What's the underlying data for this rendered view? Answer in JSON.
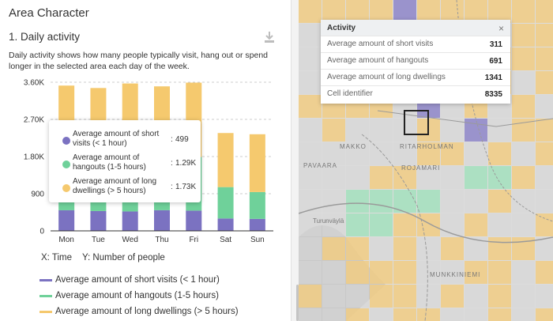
{
  "panel": {
    "title": "Area Character",
    "section_title": "1. Daily activity",
    "description": "Daily activity shows how many people typically visit, hang out or spend longer in the selected area each day of the week."
  },
  "colors": {
    "short": "#7b72c1",
    "hangout": "#6fd19a",
    "long": "#f5c96e"
  },
  "chart_data": {
    "type": "bar",
    "stacked": true,
    "categories": [
      "Mon",
      "Tue",
      "Wed",
      "Thu",
      "Fri",
      "Sat",
      "Sun"
    ],
    "series": [
      {
        "name": "Average amount of short visits (< 1 hour)",
        "values": [
          499,
          480,
          470,
          500,
          490,
          300,
          290
        ]
      },
      {
        "name": "Average amount of hangouts (1-5 hours)",
        "values": [
          1290,
          1280,
          1300,
          1300,
          1300,
          760,
          650
        ]
      },
      {
        "name": "Average amount of long dwellings (> 5 hours)",
        "values": [
          1730,
          1700,
          1800,
          1700,
          1800,
          1310,
          1400
        ]
      }
    ],
    "yticks": [
      "0",
      "900",
      "1.80K",
      "2.70K",
      "3.60K"
    ],
    "ylim": [
      0,
      3600
    ],
    "xlabel": "Time",
    "ylabel": "Number of people"
  },
  "tooltip": {
    "rows": [
      {
        "label": "Average amount of short visits (< 1 hour)",
        "value": "499"
      },
      {
        "label": "Average amount of hangouts (1-5 hours)",
        "value": "1.29K"
      },
      {
        "label": "Average amount of long dwellings (> 5 hours)",
        "value": "1.73K"
      }
    ]
  },
  "axis_caption": {
    "x": "X: Time",
    "y": "Y: Number of people"
  },
  "legend": [
    "Average amount of short visits (< 1 hour)",
    "Average amount of hangouts (1-5 hours)",
    "Average amount of long dwellings (> 5 hours)"
  ],
  "map": {
    "labels": [
      "MAKKO",
      "RITARHOLMAN",
      "PAVAARA",
      "ROJAMARI",
      "Turunväylä",
      "MUNKKINIEMI"
    ]
  },
  "activity_popup": {
    "title": "Activity",
    "close": "×",
    "rows": [
      {
        "label": "Average amount of short visits",
        "value": "311"
      },
      {
        "label": "Average amount of hangouts",
        "value": "691"
      },
      {
        "label": "Average amount of long dwellings",
        "value": "1341"
      },
      {
        "label": "Cell identifier",
        "value": "8335"
      }
    ]
  }
}
